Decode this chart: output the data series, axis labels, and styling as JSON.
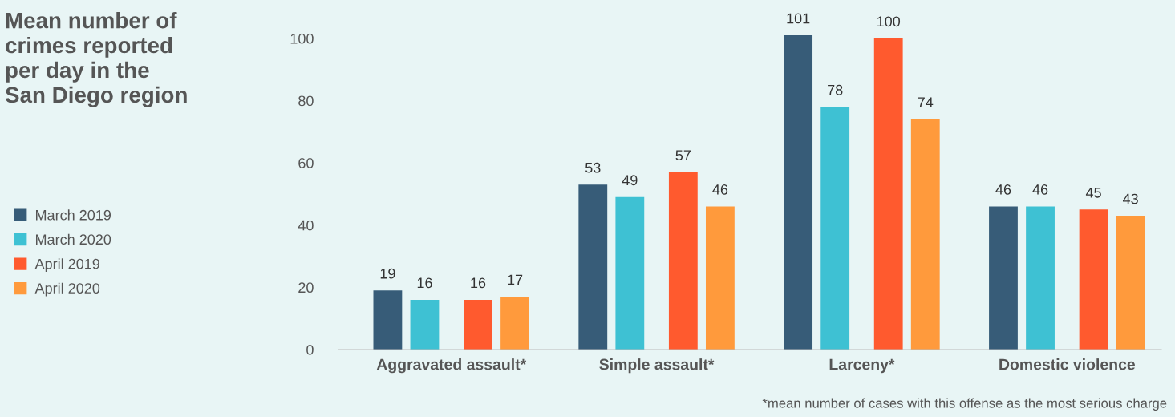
{
  "chart_data": {
    "type": "bar",
    "title": "Mean number of crimes reported per day in the San Diego region",
    "categories": [
      "Aggravated assault*",
      "Simple assault*",
      "Larceny*",
      "Domestic violence"
    ],
    "series": [
      {
        "name": "March 2019",
        "color": "#375c78",
        "values": [
          19,
          53,
          101,
          46
        ]
      },
      {
        "name": "March 2020",
        "color": "#3ec1d3",
        "values": [
          16,
          49,
          78,
          46
        ]
      },
      {
        "name": "April 2019",
        "color": "#ff5a2e",
        "values": [
          16,
          57,
          100,
          45
        ]
      },
      {
        "name": "April 2020",
        "color": "#ff9a3c",
        "values": [
          17,
          46,
          74,
          43
        ]
      }
    ],
    "ylim": [
      0,
      101
    ],
    "yticks": [
      0,
      20,
      40,
      60,
      80,
      100
    ],
    "data_labels": true,
    "grid": false,
    "legend": "left",
    "annotations": [
      "*mean number of cases with this offense as the most serious charge"
    ]
  }
}
